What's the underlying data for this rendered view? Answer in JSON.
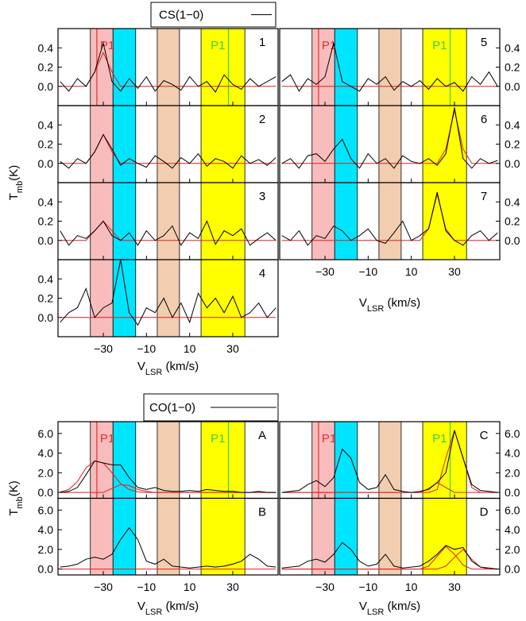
{
  "chart_data": [
    {
      "type": "line",
      "legend": "CS(1−0)",
      "line_color": "#000000",
      "fit_color": "#e02020",
      "xlabel": [
        "V",
        "LSR",
        " (km/s)"
      ],
      "ylabel": [
        "T",
        "mb",
        "(K)"
      ],
      "xlim": [
        -51,
        51
      ],
      "xticks": [
        {
          "value": -30,
          "label": "−30"
        },
        {
          "value": -10,
          "label": "−10"
        },
        10,
        30
      ],
      "ylim": [
        -0.2,
        0.6
      ],
      "yticks": [
        {
          "value": 0,
          "label": "0.0"
        },
        0.2,
        0.4
      ],
      "bands": [
        {
          "range": [
            -36,
            -25.5
          ],
          "color": "#f9bcbc"
        },
        {
          "range": [
            -25.5,
            -15
          ],
          "color": "#00e5ff"
        },
        {
          "range": [
            -5,
            5.3
          ],
          "color": "#f2cdb0"
        },
        {
          "range": [
            15.3,
            35.6
          ],
          "color": "#ffff00"
        }
      ],
      "x": [
        -50,
        -46,
        -42,
        -38,
        -34,
        -30,
        -26,
        -22,
        -18,
        -14,
        -10,
        -6,
        -2,
        2,
        6,
        10,
        14,
        18,
        22,
        26,
        30,
        34,
        38,
        42,
        46,
        50
      ],
      "panels": [
        {
          "label": "1",
          "markers": [
            {
              "x": -33,
              "color": "#e03030",
              "label": "P1"
            },
            {
              "x": 28,
              "color": "#40d040",
              "label": "P1"
            }
          ],
          "values": [
            0.05,
            -0.05,
            0.08,
            0.0,
            0.15,
            0.45,
            0.05,
            -0.05,
            0.08,
            -0.02,
            0.1,
            -0.05,
            0.06,
            0.02,
            -0.04,
            0.1,
            0.0,
            0.05,
            -0.06,
            0.12,
            0.02,
            -0.03,
            0.08,
            0.0,
            0.05,
            0.1
          ],
          "fits": [
            [
              0,
              0,
              0,
              0,
              0.15,
              0.35,
              0.15,
              0,
              0,
              0,
              0,
              0,
              0,
              0,
              0,
              0,
              0,
              0,
              0,
              0,
              0,
              0,
              0,
              0,
              0,
              0
            ]
          ]
        },
        {
          "label": "2",
          "values": [
            0.02,
            -0.05,
            0.05,
            0.0,
            0.12,
            0.3,
            0.15,
            -0.02,
            0.05,
            0.0,
            -0.04,
            0.08,
            0.02,
            -0.05,
            0.06,
            0.0,
            0.1,
            -0.03,
            0.05,
            0.02,
            -0.05,
            0.08,
            0.0,
            0.04,
            -0.02,
            0.06
          ],
          "fits": [
            [
              0,
              0,
              0,
              0,
              0.12,
              0.3,
              0.12,
              0,
              0,
              0,
              0,
              0,
              0,
              0,
              0,
              0,
              0,
              0,
              0,
              0,
              0,
              0,
              0,
              0,
              0,
              0
            ]
          ]
        },
        {
          "label": "3",
          "values": [
            0.1,
            -0.05,
            0.05,
            0.02,
            0.1,
            0.2,
            0.05,
            0.0,
            0.08,
            -0.05,
            0.1,
            0.0,
            0.05,
            0.15,
            -0.05,
            0.08,
            0.02,
            0.2,
            -0.04,
            0.1,
            0.05,
            0.12,
            -0.05,
            0.02,
            0.08,
            0.0
          ],
          "fits": [
            [
              0,
              0,
              0,
              0,
              0.1,
              0.2,
              0.1,
              0,
              0,
              0,
              0,
              0,
              0,
              0,
              0,
              0,
              0,
              0,
              0,
              0,
              0,
              0,
              0,
              0,
              0,
              0
            ]
          ]
        },
        {
          "label": "4",
          "values": [
            -0.05,
            0.05,
            0.1,
            0.3,
            0.0,
            0.1,
            0.15,
            0.6,
            0.05,
            -0.08,
            0.1,
            0.05,
            0.2,
            0.0,
            0.15,
            -0.05,
            0.25,
            0.1,
            0.2,
            0.05,
            0.22,
            0.0,
            0.05,
            0.15,
            0.0,
            0.1
          ],
          "fits": [
            [
              0,
              0,
              0,
              0,
              0,
              0,
              0,
              0,
              0,
              0,
              0,
              0,
              0,
              0,
              0,
              0,
              0,
              0,
              0,
              0,
              0,
              0,
              0,
              0,
              0,
              0
            ]
          ]
        },
        {
          "label": "5",
          "markers": [
            {
              "x": -33,
              "color": "#e03030",
              "label": "P1"
            },
            {
              "x": 28,
              "color": "#40d040",
              "label": "P1"
            }
          ],
          "values": [
            0.05,
            0.12,
            -0.05,
            0.08,
            0.02,
            0.1,
            0.45,
            0.05,
            0.0,
            -0.05,
            0.08,
            0.02,
            0.1,
            -0.04,
            0.05,
            0.0,
            0.06,
            -0.03,
            0.08,
            0.0,
            0.04,
            -0.05,
            0.1,
            0.02,
            0.15,
            0.0
          ],
          "fits": [
            [
              0,
              0,
              0,
              0,
              0,
              0,
              0,
              0,
              0,
              0,
              0,
              0,
              0,
              0,
              0,
              0,
              0,
              0,
              0,
              0,
              0,
              0,
              0,
              0,
              0,
              0
            ]
          ]
        },
        {
          "label": "6",
          "values": [
            0.0,
            0.05,
            -0.05,
            0.08,
            0.1,
            0.02,
            0.15,
            0.25,
            0.05,
            -0.05,
            0.1,
            0.0,
            0.05,
            -0.05,
            0.08,
            0.02,
            0.0,
            0.05,
            -0.02,
            0.1,
            0.58,
            0.05,
            -0.05,
            0.05,
            0.0,
            0.03
          ],
          "fits": [
            [
              0,
              0,
              0,
              0,
              0,
              0,
              0,
              0,
              0,
              0,
              0,
              0,
              0,
              0,
              0,
              0,
              0,
              0,
              0,
              0.15,
              0.55,
              0.15,
              0,
              0,
              0,
              0
            ]
          ]
        },
        {
          "label": "7",
          "values": [
            0.05,
            0.0,
            0.1,
            -0.05,
            0.05,
            0.02,
            0.15,
            0.1,
            0.0,
            0.05,
            0.12,
            0.0,
            -0.03,
            0.08,
            0.2,
            0.0,
            0.05,
            0.12,
            0.5,
            0.1,
            0.0,
            -0.05,
            0.05,
            0.1,
            0.0,
            0.08
          ],
          "fits": [
            [
              0,
              0,
              0,
              0,
              0,
              0,
              0,
              0,
              0,
              0,
              0,
              0,
              0,
              0,
              0,
              0,
              0,
              0.12,
              0.48,
              0.12,
              0,
              0,
              0,
              0,
              0,
              0
            ]
          ]
        }
      ]
    },
    {
      "type": "line",
      "legend": "CO(1−0)",
      "line_color": "#000000",
      "fit_color": "#e02020",
      "xlabel": [
        "V",
        "LSR",
        " (km/s)"
      ],
      "ylabel": [
        "T",
        "mb",
        "(K)"
      ],
      "xlim": [
        -51,
        51
      ],
      "xticks": [
        {
          "value": -30,
          "label": "−30"
        },
        {
          "value": -10,
          "label": "−10"
        },
        10,
        30
      ],
      "ylim": [
        -0.6,
        7.2
      ],
      "yticks": [
        {
          "value": 0,
          "label": "0.0"
        },
        {
          "value": 2,
          "label": "2.0"
        },
        {
          "value": 4,
          "label": "4.0"
        },
        {
          "value": 6,
          "label": "6.0"
        }
      ],
      "bands": [
        {
          "range": [
            -36,
            -25.5
          ],
          "color": "#f9bcbc"
        },
        {
          "range": [
            -25.5,
            -15
          ],
          "color": "#00e5ff"
        },
        {
          "range": [
            -5,
            5.3
          ],
          "color": "#f2cdb0"
        },
        {
          "range": [
            15.3,
            35.6
          ],
          "color": "#ffff00"
        }
      ],
      "x": [
        -50,
        -46,
        -42,
        -38,
        -34,
        -30,
        -26,
        -22,
        -18,
        -14,
        -10,
        -6,
        -2,
        2,
        6,
        10,
        14,
        18,
        22,
        26,
        30,
        34,
        38,
        42,
        46,
        50
      ],
      "panels": [
        {
          "label": "A",
          "markers": [
            {
              "x": -33,
              "color": "#e03030",
              "label": "P1"
            },
            {
              "x": 28,
              "color": "#40d040",
              "label": "P1"
            }
          ],
          "values": [
            0,
            0.1,
            0.5,
            1.8,
            3.2,
            3.0,
            2.8,
            2.8,
            1.5,
            0.5,
            0.3,
            0.5,
            0.2,
            0.1,
            0.1,
            0.2,
            0.1,
            0.3,
            0.2,
            0.1,
            0.1,
            0,
            0,
            0.1,
            0,
            0
          ],
          "fits": [
            [
              0.05,
              0.3,
              1.1,
              2.5,
              3.2,
              3.0,
              2.0,
              0.9,
              0.3,
              0.05,
              0,
              0,
              0,
              0,
              0,
              0,
              0,
              0,
              0,
              0,
              0,
              0,
              0,
              0,
              0,
              0
            ],
            [
              0,
              0,
              0,
              0,
              0,
              0,
              0.4,
              0.8,
              0.7,
              0.3,
              0.1,
              0,
              0,
              0,
              0,
              0,
              0,
              0,
              0,
              0,
              0,
              0,
              0,
              0,
              0,
              0
            ]
          ]
        },
        {
          "label": "B",
          "values": [
            0.2,
            0.3,
            0.5,
            1.0,
            1.2,
            1.0,
            1.5,
            3.0,
            4.2,
            3.0,
            0.8,
            0.5,
            1.0,
            0.3,
            0.2,
            0.1,
            0.2,
            0.3,
            0.2,
            0.3,
            0.5,
            0.8,
            1.5,
            1.0,
            0.3,
            0.2
          ],
          "fits": [
            [
              0,
              0,
              0,
              0,
              0,
              0,
              0,
              0,
              0,
              0,
              0,
              0,
              0,
              0,
              0,
              0,
              0,
              0,
              0,
              0,
              0,
              0,
              0,
              0,
              0,
              0
            ]
          ]
        },
        {
          "label": "C",
          "markers": [
            {
              "x": -33,
              "color": "#e03030",
              "label": "P1"
            },
            {
              "x": 28,
              "color": "#40d040",
              "label": "P1"
            }
          ],
          "values": [
            0,
            0.1,
            0.2,
            0.8,
            1.2,
            0.6,
            1.5,
            4.4,
            3.5,
            1.0,
            0.3,
            0.5,
            1.8,
            0.3,
            0.1,
            0,
            0.1,
            0.3,
            1.0,
            2.0,
            6.3,
            3.5,
            0.8,
            0.2,
            0.1,
            0
          ],
          "fits": [
            [
              0,
              0,
              0,
              0,
              0,
              0,
              0,
              0,
              0,
              0,
              0,
              0,
              0,
              0,
              0,
              0,
              0,
              0.4,
              1.0,
              0.5,
              0,
              0,
              0,
              0,
              0,
              0
            ],
            [
              0,
              0,
              0,
              0,
              0,
              0,
              0,
              0,
              0,
              0,
              0,
              0,
              0,
              0,
              0,
              0,
              0,
              0,
              0.3,
              3.5,
              6.3,
              3.5,
              0.5,
              0,
              0,
              0
            ]
          ]
        },
        {
          "label": "D",
          "values": [
            0.1,
            0.2,
            0.3,
            0.8,
            1.0,
            0.7,
            1.5,
            2.7,
            2.0,
            0.8,
            0.3,
            0.5,
            1.5,
            0.3,
            0.1,
            0.2,
            0.3,
            0.8,
            1.5,
            2.4,
            2.0,
            2.2,
            0.8,
            0.2,
            0.1,
            0
          ],
          "fits": [
            [
              0,
              0,
              0,
              0,
              0,
              0,
              0,
              0,
              0,
              0,
              0,
              0,
              0,
              0,
              0,
              0,
              0,
              0.3,
              1.3,
              2.3,
              1.5,
              0.4,
              0,
              0,
              0,
              0
            ],
            [
              0,
              0,
              0,
              0,
              0,
              0,
              0,
              0,
              0,
              0,
              0,
              0,
              0,
              0,
              0,
              0,
              0,
              0,
              0,
              0.3,
              1.2,
              2.0,
              1.0,
              0.2,
              0,
              0
            ]
          ]
        }
      ]
    }
  ]
}
